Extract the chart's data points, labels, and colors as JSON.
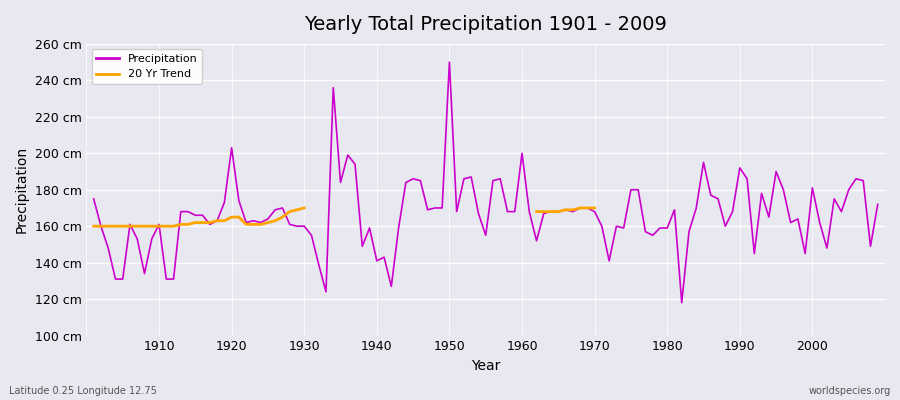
{
  "title": "Yearly Total Precipitation 1901 - 2009",
  "xlabel": "Year",
  "ylabel": "Precipitation",
  "subtitle": "Latitude 0.25 Longitude 12.75",
  "watermark": "worldspecies.org",
  "bg_color": "#e8e8f0",
  "grid_color": "#ffffff",
  "precip_color": "#cc00cc",
  "trend_color": "#ffa500",
  "ylim": [
    100,
    260
  ],
  "yticks": [
    100,
    120,
    140,
    160,
    180,
    200,
    220,
    240,
    260
  ],
  "years": [
    1901,
    1902,
    1903,
    1904,
    1905,
    1906,
    1907,
    1908,
    1909,
    1910,
    1911,
    1912,
    1913,
    1914,
    1915,
    1916,
    1917,
    1918,
    1919,
    1920,
    1921,
    1922,
    1923,
    1924,
    1925,
    1926,
    1927,
    1928,
    1929,
    1930,
    1931,
    1932,
    1933,
    1934,
    1935,
    1936,
    1937,
    1938,
    1939,
    1940,
    1941,
    1942,
    1943,
    1944,
    1945,
    1946,
    1947,
    1948,
    1949,
    1950,
    1951,
    1952,
    1953,
    1954,
    1955,
    1956,
    1957,
    1958,
    1959,
    1960,
    1961,
    1962,
    1963,
    1964,
    1965,
    1966,
    1967,
    1968,
    1969,
    1970,
    1971,
    1972,
    1973,
    1974,
    1975,
    1976,
    1977,
    1978,
    1979,
    1980,
    1981,
    1982,
    1983,
    1984,
    1985,
    1986,
    1987,
    1988,
    1989,
    1990,
    1991,
    1992,
    1993,
    1994,
    1995,
    1996,
    1997,
    1998,
    1999,
    2000,
    2001,
    2002,
    2003,
    2004,
    2005,
    2006,
    2007,
    2008,
    2009
  ],
  "precip": [
    175,
    160,
    148,
    131,
    131,
    161,
    153,
    134,
    153,
    161,
    131,
    131,
    168,
    168,
    166,
    166,
    161,
    163,
    173,
    203,
    174,
    162,
    163,
    162,
    164,
    169,
    170,
    161,
    160,
    160,
    155,
    139,
    124,
    236,
    184,
    199,
    194,
    149,
    159,
    141,
    143,
    127,
    159,
    184,
    186,
    185,
    169,
    170,
    170,
    250,
    168,
    186,
    187,
    167,
    155,
    185,
    186,
    168,
    168,
    200,
    168,
    152,
    167,
    168,
    168,
    169,
    168,
    170,
    170,
    168,
    160,
    141,
    160,
    159,
    180,
    180,
    157,
    155,
    159,
    159,
    169,
    118,
    157,
    170,
    195,
    177,
    175,
    160,
    168,
    192,
    186,
    145,
    178,
    165,
    190,
    180,
    162,
    164,
    145,
    181,
    162,
    148,
    175,
    168,
    180,
    186,
    185,
    149,
    172
  ],
  "trend_years": [
    1901,
    1902,
    1903,
    1904,
    1905,
    1906,
    1907,
    1908,
    1909,
    1910,
    1911,
    1912,
    1913,
    1914,
    1915,
    1916,
    1917,
    1918,
    1919,
    1920,
    1921,
    1922,
    1923,
    1924,
    1925,
    1926,
    1927,
    1928,
    1929,
    1930
  ],
  "trend": [
    160,
    160,
    160,
    160,
    160,
    160,
    160,
    160,
    160,
    160,
    160,
    160,
    161,
    161,
    162,
    162,
    162,
    163,
    163,
    165,
    165,
    161,
    161,
    161,
    162,
    163,
    165,
    168,
    169,
    170
  ],
  "trend2_years": [
    1962,
    1963,
    1964,
    1965,
    1966,
    1967,
    1968,
    1969,
    1970
  ],
  "trend2": [
    168,
    168,
    168,
    168,
    169,
    169,
    170,
    170,
    170
  ]
}
